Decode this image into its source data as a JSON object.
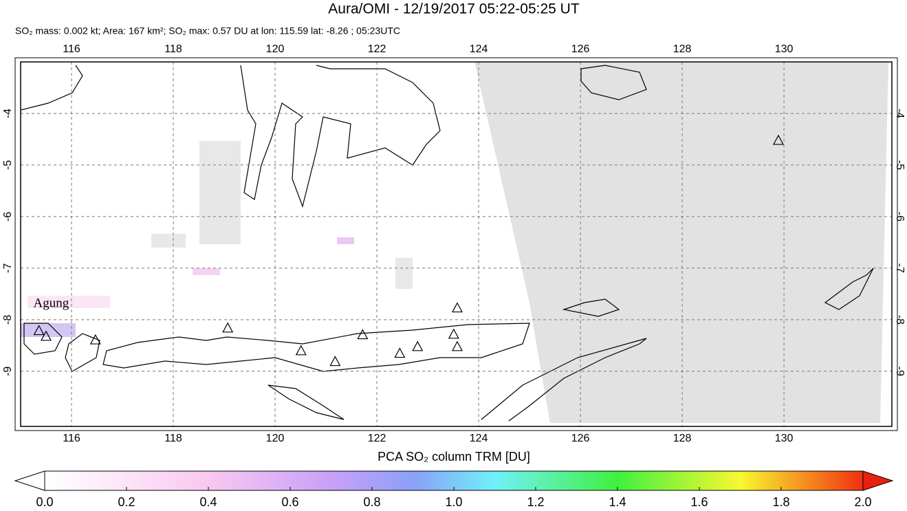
{
  "header": {
    "title": "Aura/OMI - 12/19/2017 05:22-05:25 UT",
    "subtitle": "SO₂ mass: 0.002 kt; Area: 167 km²; SO₂ max: 0.57 DU at lon: 115.59 lat: -8.26 ; 05:23UTC"
  },
  "map": {
    "lonlim": [
      115,
      132.12
    ],
    "latlim": [
      -3,
      -10.07
    ],
    "lonticks": [
      116,
      118,
      120,
      122,
      124,
      126,
      128,
      130
    ],
    "latticks": [
      -4,
      -5,
      -6,
      -7,
      -8,
      -9
    ],
    "annotation": {
      "text": "Agung",
      "lon": 115.6,
      "lat": -7.7
    },
    "volcanoes": [
      [
        115.36,
        -8.21
      ],
      [
        115.5,
        -8.32
      ],
      [
        116.47,
        -8.39
      ],
      [
        119.07,
        -8.16
      ],
      [
        120.51,
        -8.6
      ],
      [
        121.18,
        -8.81
      ],
      [
        121.72,
        -8.29
      ],
      [
        122.45,
        -8.65
      ],
      [
        122.8,
        -8.52
      ],
      [
        123.51,
        -8.28
      ],
      [
        123.58,
        -8.52
      ],
      [
        123.58,
        -7.77
      ],
      [
        129.89,
        -4.52
      ]
    ]
  },
  "colorbar": {
    "label": "PCA SO₂ column TRM [DU]",
    "lim": [
      0,
      2
    ],
    "ticks": [
      {
        "value": 0,
        "label": "0.0"
      },
      {
        "value": 0.2,
        "label": "0.2"
      },
      {
        "value": 0.4,
        "label": "0.4"
      },
      {
        "value": 0.6,
        "label": "0.6"
      },
      {
        "value": 0.8,
        "label": "0.8"
      },
      {
        "value": 1,
        "label": "1.0"
      },
      {
        "value": 1.2,
        "label": "1.2"
      },
      {
        "value": 1.4,
        "label": "1.4"
      },
      {
        "value": 1.6,
        "label": "1.6"
      },
      {
        "value": 1.8,
        "label": "1.8"
      },
      {
        "value": 2,
        "label": "2.0"
      }
    ]
  }
}
